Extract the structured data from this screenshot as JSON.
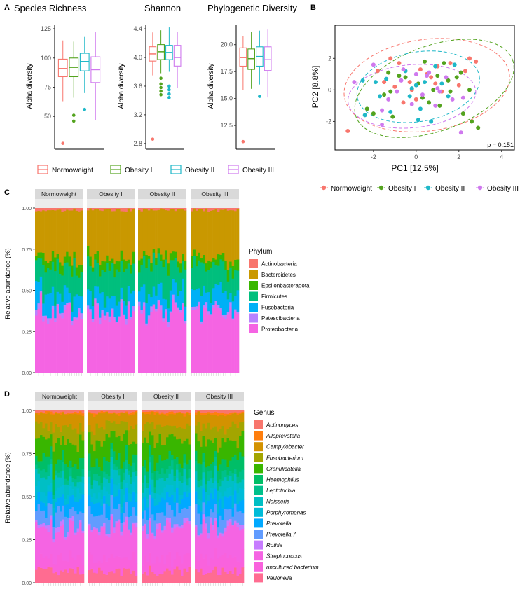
{
  "panels": {
    "A": "A",
    "B": "B",
    "C": "C",
    "D": "D"
  },
  "groups": [
    "Normoweight",
    "Obesity I",
    "Obesity II",
    "Obesity III"
  ],
  "colors": {
    "Normoweight": "#f8766d",
    "Obesity I": "#53a31e",
    "Obesity II": "#1fb8c8",
    "Obesity III": "#cf79ee"
  },
  "chart_data": [
    {
      "type": "box",
      "title": "Species Richness",
      "ylabel": "Alpha diversity",
      "ylim": [
        22,
        128
      ],
      "yticks": [
        50,
        75,
        100,
        125
      ],
      "boxes": [
        {
          "group": "Normoweight",
          "min": 63,
          "q1": 84,
          "median": 91,
          "q3": 99,
          "max": 115,
          "outliers": [
            27
          ]
        },
        {
          "group": "Obesity I",
          "min": 66,
          "q1": 84,
          "median": 92,
          "q3": 100,
          "max": 114,
          "outliers": [
            51,
            46
          ]
        },
        {
          "group": "Obesity II",
          "min": 70,
          "q1": 89,
          "median": 97,
          "q3": 104,
          "max": 118,
          "outliers": [
            56
          ]
        },
        {
          "group": "Obesity III",
          "min": 47,
          "q1": 79,
          "median": 90,
          "q3": 101,
          "max": 122,
          "outliers": []
        }
      ]
    },
    {
      "type": "box",
      "title": "Shannon",
      "ylabel": "Alpha diversity",
      "ylim": [
        2.72,
        4.45
      ],
      "yticks": [
        2.8,
        3.2,
        3.6,
        4.0,
        4.4
      ],
      "boxes": [
        {
          "group": "Normoweight",
          "min": 3.75,
          "q1": 3.95,
          "median": 4.05,
          "q3": 4.15,
          "max": 4.35,
          "outliers": [
            2.86
          ]
        },
        {
          "group": "Obesity I",
          "min": 3.78,
          "q1": 3.97,
          "median": 4.08,
          "q3": 4.18,
          "max": 4.38,
          "outliers": [
            3.71,
            3.63,
            3.58,
            3.53,
            3.48
          ]
        },
        {
          "group": "Obesity II",
          "min": 3.8,
          "q1": 3.97,
          "median": 4.07,
          "q3": 4.17,
          "max": 4.42,
          "outliers": [
            3.6,
            3.55,
            3.49,
            3.44
          ]
        },
        {
          "group": "Obesity III",
          "min": 3.58,
          "q1": 3.88,
          "median": 4.0,
          "q3": 4.17,
          "max": 4.36,
          "outliers": []
        }
      ]
    },
    {
      "type": "box",
      "title": "Phylogenetic Diversity",
      "ylabel": "Alpha diversity",
      "ylim": [
        10.3,
        21.8
      ],
      "yticks": [
        12.5,
        15.0,
        17.5,
        20.0
      ],
      "boxes": [
        {
          "group": "Normoweight",
          "min": 15.8,
          "q1": 18.0,
          "median": 18.8,
          "q3": 19.7,
          "max": 20.8,
          "outliers": [
            11.0
          ]
        },
        {
          "group": "Obesity I",
          "min": 15.9,
          "q1": 17.7,
          "median": 18.7,
          "q3": 19.6,
          "max": 21.2,
          "outliers": []
        },
        {
          "group": "Obesity II",
          "min": 16.3,
          "q1": 18.0,
          "median": 18.9,
          "q3": 19.8,
          "max": 21.3,
          "outliers": [
            15.2
          ]
        },
        {
          "group": "Obesity III",
          "min": 15.1,
          "q1": 17.6,
          "median": 18.6,
          "q3": 19.8,
          "max": 21.4,
          "outliers": []
        }
      ]
    },
    {
      "type": "scatter",
      "xlabel": "PC1   [12.5%]",
      "ylabel": "PC2   [8.8%]",
      "xlim": [
        -3.8,
        4.6
      ],
      "ylim": [
        -3.8,
        4.1
      ],
      "xticks": [
        -2,
        0,
        2,
        4
      ],
      "yticks": [
        -2,
        0,
        2
      ],
      "annotation": "p = 0.151",
      "ellipses": [
        {
          "group": "Normoweight",
          "cx": 0.5,
          "cy": 0.3,
          "rx": 3.9,
          "ry": 2.9,
          "angle": 8
        },
        {
          "group": "Obesity I",
          "cx": 0.85,
          "cy": 0.1,
          "rx": 3.9,
          "ry": 2.7,
          "angle": 20
        },
        {
          "group": "Obesity II",
          "cx": 0.1,
          "cy": 0.2,
          "rx": 2.9,
          "ry": 2.2,
          "angle": 10
        },
        {
          "group": "Obesity III",
          "cx": -0.2,
          "cy": -0.4,
          "rx": 3.0,
          "ry": 2.0,
          "angle": 5
        }
      ],
      "points": {
        "Normoweight": [
          [
            -3.2,
            -2.6
          ],
          [
            -1.8,
            1.2
          ],
          [
            -1.5,
            0.5
          ],
          [
            -1.2,
            2.0
          ],
          [
            -1.0,
            0.2
          ],
          [
            -0.6,
            -0.8
          ],
          [
            -0.3,
            0.5
          ],
          [
            -0.2,
            0.0
          ],
          [
            0.2,
            1.3
          ],
          [
            0.5,
            1.0
          ],
          [
            0.9,
            0.4
          ],
          [
            1.2,
            -0.1
          ],
          [
            1.6,
            1.7
          ],
          [
            2.0,
            0.3
          ],
          [
            2.3,
            1.2
          ],
          [
            2.5,
            2.0
          ],
          [
            2.8,
            1.8
          ],
          [
            -0.8,
            1.7
          ],
          [
            0.0,
            -0.6
          ],
          [
            0.7,
            0.8
          ],
          [
            1.0,
            1.5
          ]
        ],
        "Obesity I": [
          [
            -2.0,
            -1.5
          ],
          [
            -1.5,
            -0.3
          ],
          [
            -1.3,
            1.1
          ],
          [
            -1.1,
            -1.7
          ],
          [
            -0.8,
            0.9
          ],
          [
            -0.5,
            0.8
          ],
          [
            0.1,
            0.4
          ],
          [
            0.3,
            -0.5
          ],
          [
            0.6,
            -0.8
          ],
          [
            0.8,
            0.0
          ],
          [
            1.0,
            0.9
          ],
          [
            1.3,
            1.7
          ],
          [
            1.6,
            -0.1
          ],
          [
            1.9,
            0.8
          ],
          [
            2.1,
            1.1
          ],
          [
            2.2,
            -1.5
          ],
          [
            2.5,
            0.0
          ],
          [
            2.6,
            -2.0
          ],
          [
            2.9,
            -2.4
          ],
          [
            -1.2,
            -0.1
          ],
          [
            0.4,
            1.8
          ],
          [
            1.5,
            0.6
          ],
          [
            -2.3,
            -1.2
          ],
          [
            1.1,
            -1.0
          ]
        ],
        "Obesity II": [
          [
            -2.5,
            0.6
          ],
          [
            -2.4,
            -1.6
          ],
          [
            -1.9,
            0.5
          ],
          [
            -1.4,
            0.7
          ],
          [
            -1.2,
            -1.4
          ],
          [
            -0.5,
            1.2
          ],
          [
            -0.3,
            -0.4
          ],
          [
            0.0,
            0.3
          ],
          [
            0.2,
            -1.2
          ],
          [
            0.4,
            0.5
          ],
          [
            0.7,
            -2.0
          ],
          [
            0.9,
            1.5
          ],
          [
            1.2,
            0.4
          ],
          [
            1.5,
            -0.4
          ],
          [
            1.8,
            1.6
          ],
          [
            -1.7,
            -0.4
          ],
          [
            0.1,
            -1.9
          ],
          [
            -0.2,
            0.1
          ]
        ],
        "Obesity III": [
          [
            -2.9,
            0.5
          ],
          [
            -2.0,
            1.6
          ],
          [
            -1.6,
            -1.3
          ],
          [
            -1.3,
            -0.6
          ],
          [
            -0.9,
            -0.1
          ],
          [
            -0.7,
            0.6
          ],
          [
            -0.2,
            -0.9
          ],
          [
            0.0,
            1.0
          ],
          [
            0.3,
            -0.3
          ],
          [
            0.5,
            0.9
          ],
          [
            0.9,
            -1.0
          ],
          [
            1.1,
            -0.1
          ],
          [
            1.4,
            0.8
          ],
          [
            1.7,
            -0.6
          ],
          [
            2.1,
            -2.7
          ],
          [
            2.2,
            -0.5
          ],
          [
            -1.6,
            -2.2
          ],
          [
            0.6,
            1.1
          ],
          [
            -0.6,
            1.3
          ],
          [
            1.0,
            0.1
          ]
        ]
      }
    },
    {
      "type": "stacked_bar",
      "legend_title": "Phylum",
      "ylabel": "Relative abundance (%)",
      "yticks": [
        0,
        0.25,
        0.5,
        0.75,
        1.0
      ],
      "ytick_labels": [
        "0.00",
        "0.25",
        "0.50",
        "0.75",
        "1.00"
      ],
      "facets": [
        "Normoweight",
        "Obesity I",
        "Obesity II",
        "Obesity III"
      ],
      "samples_per_facet": 20,
      "categories": [
        {
          "name": "Proteobacteria",
          "color": "#f564e3",
          "mean": 0.37,
          "spread": 0.1
        },
        {
          "name": "Patescibacteria",
          "color": "#b983ff",
          "mean": 0.02,
          "spread": 0.015
        },
        {
          "name": "Fusobacteria",
          "color": "#00b0f6",
          "mean": 0.1,
          "spread": 0.05
        },
        {
          "name": "Firmicutes",
          "color": "#00bf7d",
          "mean": 0.17,
          "spread": 0.07
        },
        {
          "name": "Epsilonbacteraeota",
          "color": "#39b600",
          "mean": 0.05,
          "spread": 0.03
        },
        {
          "name": "Bacteroidetes",
          "color": "#c99800",
          "mean": 0.28,
          "spread": 0.06
        },
        {
          "name": "Actinobacteria",
          "color": "#f8766d",
          "mean": 0.01,
          "spread": 0.01
        }
      ],
      "legend_order": [
        "Actinobacteria",
        "Bacteroidetes",
        "Epsilonbacteraeota",
        "Firmicutes",
        "Fusobacteria",
        "Patescibacteria",
        "Proteobacteria"
      ]
    },
    {
      "type": "stacked_bar",
      "legend_title": "Genus",
      "ylabel": "Relative abundance (%)",
      "yticks": [
        0,
        0.25,
        0.5,
        0.75,
        1.0
      ],
      "ytick_labels": [
        "0.00",
        "0.25",
        "0.50",
        "0.75",
        "1.00"
      ],
      "facets": [
        "Normoweight",
        "Obesity I",
        "Obesity II",
        "Obesity III"
      ],
      "samples_per_facet": 20,
      "categories": [
        {
          "name": "Veillonella",
          "color": "#ff6c91",
          "mean": 0.07,
          "spread": 0.03
        },
        {
          "name": "uncultured bacterium",
          "color": "#f962dd",
          "mean": 0.08,
          "spread": 0.04
        },
        {
          "name": "Streptococcus",
          "color": "#f564e3",
          "mean": 0.17,
          "spread": 0.06
        },
        {
          "name": "Rothia",
          "color": "#c77cff",
          "mean": 0.02,
          "spread": 0.015
        },
        {
          "name": "Prevotella 7",
          "color": "#619cff",
          "mean": 0.08,
          "spread": 0.04
        },
        {
          "name": "Prevotella",
          "color": "#00a9ff",
          "mean": 0.07,
          "spread": 0.03
        },
        {
          "name": "Porphyromonas",
          "color": "#00bcd8",
          "mean": 0.05,
          "spread": 0.03
        },
        {
          "name": "Neisseria",
          "color": "#00bfc4",
          "mean": 0.07,
          "spread": 0.04
        },
        {
          "name": "Leptotrichia",
          "color": "#00c08b",
          "mean": 0.04,
          "spread": 0.02
        },
        {
          "name": "Haemophilus",
          "color": "#00be67",
          "mean": 0.07,
          "spread": 0.04
        },
        {
          "name": "Granulicatella",
          "color": "#39b600",
          "mean": 0.11,
          "spread": 0.05
        },
        {
          "name": "Fusobacterium",
          "color": "#a3a500",
          "mean": 0.08,
          "spread": 0.04
        },
        {
          "name": "Campylobacter",
          "color": "#d39200",
          "mean": 0.07,
          "spread": 0.03
        },
        {
          "name": "Alloprevotella",
          "color": "#ff7f0e",
          "mean": 0.01,
          "spread": 0.008
        },
        {
          "name": "Actinomyces",
          "color": "#f8766d",
          "mean": 0.01,
          "spread": 0.008
        }
      ],
      "legend_order": [
        "Actinomyces",
        "Alloprevotella",
        "Campylobacter",
        "Fusobacterium",
        "Granulicatella",
        "Haemophilus",
        "Leptotrichia",
        "Neisseria",
        "Porphyromonas",
        "Prevotella",
        "Prevotella 7",
        "Rothia",
        "Streptococcus",
        "uncultured bacterium",
        "Veillonella"
      ]
    }
  ]
}
